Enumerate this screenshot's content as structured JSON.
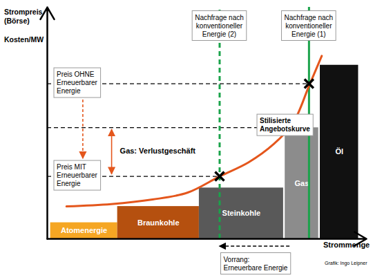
{
  "chart_data": {
    "type": "bar",
    "x_label": "Strommenge",
    "y_label": [
      "Strompreis\n(Börse)",
      "Kosten/MW"
    ],
    "xlim": [
      0,
      100
    ],
    "ylim": [
      0,
      100
    ],
    "tick_labels": false,
    "grid": false,
    "categories": [
      "Atomenergie",
      "Braunkohle",
      "Steinkohle",
      "Gas",
      "Öl"
    ],
    "x_start": [
      1,
      22,
      47.6,
      74.5,
      85.5
    ],
    "x_end": [
      22,
      47.6,
      74,
      85,
      97.5
    ],
    "values": [
      7,
      14,
      22,
      48,
      75
    ],
    "colors": [
      "#f5a623",
      "#b5500f",
      "#595959",
      "#8c8c8c",
      "#111111"
    ],
    "supply_curve": {
      "name": "Stilisierte\nAngebotskurve",
      "color": "#e4561c",
      "x": [
        6,
        20,
        33,
        44,
        54,
        63,
        71,
        77,
        82,
        86
      ],
      "y": [
        14,
        15,
        17,
        20,
        27,
        33,
        41,
        50,
        66,
        79
      ]
    },
    "demand": [
      {
        "name": "Nachfrage nach\nkonventioneller\nEnergie (1)",
        "x": 82,
        "color": "#1aa34a",
        "line_style": "solid"
      },
      {
        "name": "Nachfrage nach\nkonventioneller\nEnergie (2)",
        "x": 54,
        "color": "#1aa34a",
        "line_style": "dashed"
      }
    ],
    "prices": [
      {
        "label": "Preis OHNE\nErneuerbarer\nEnergie",
        "value": 67
      },
      {
        "label": "Preis MIT\nErneuerbarer\nEnergie",
        "value": 27
      }
    ],
    "annotations": [
      {
        "text": "Gas: Verlustgeschäft",
        "from": 48,
        "to": 27
      },
      {
        "text": "Vorrang:\nErneuerbare Energie",
        "from": 76,
        "to": 54
      }
    ],
    "source": "Grafik: Ingo Leipner"
  }
}
